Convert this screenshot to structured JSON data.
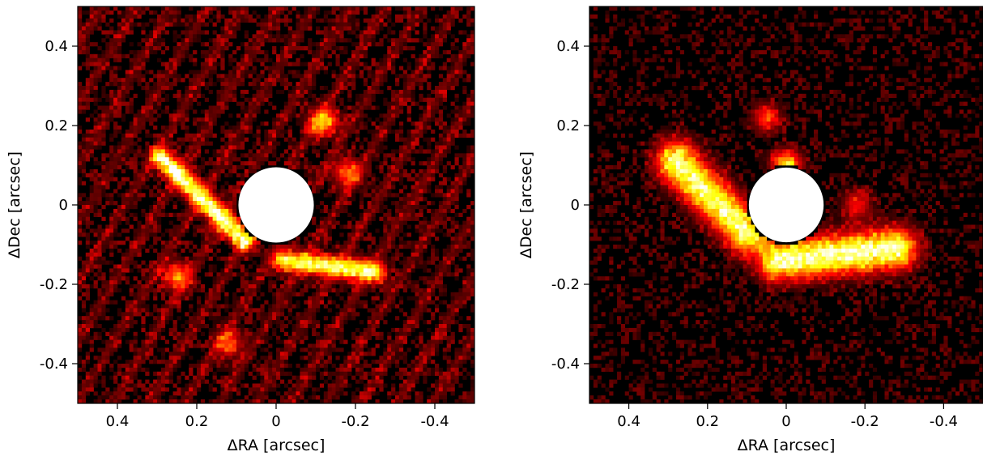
{
  "chart_data": [
    {
      "type": "heatmap",
      "colormap": "hot",
      "masked_center_color": "#ffffff",
      "xlabel": "ΔRA [arcsec]",
      "ylabel": "ΔDec [arcsec]",
      "xlim": [
        0.5,
        -0.5
      ],
      "ylim": [
        -0.5,
        0.5
      ],
      "xticks": [
        0.4,
        0.2,
        0,
        -0.2,
        -0.4
      ],
      "xtick_labels": [
        "0.4",
        "0.2",
        "0",
        "-0.2",
        "-0.4"
      ],
      "yticks": [
        0.4,
        0.2,
        0,
        -0.2,
        -0.4
      ],
      "ytick_labels": [
        "0.4",
        "0.2",
        "0",
        "-0.2",
        "-0.4"
      ],
      "mask_radius": 0.1,
      "features": [
        {
          "shape": "streak",
          "from": [
            0.29,
            0.12
          ],
          "to": [
            0.08,
            -0.09
          ],
          "intensity": 0.95
        },
        {
          "shape": "streak",
          "from": [
            -0.02,
            -0.14
          ],
          "to": [
            -0.25,
            -0.17
          ],
          "intensity": 0.9
        },
        {
          "shape": "blob",
          "center": [
            -0.12,
            0.21
          ],
          "intensity": 0.6
        },
        {
          "shape": "blob",
          "center": [
            0.25,
            -0.18
          ],
          "intensity": 0.5
        },
        {
          "shape": "blob",
          "center": [
            0.12,
            -0.35
          ],
          "intensity": 0.4
        },
        {
          "shape": "blob",
          "center": [
            -0.18,
            0.08
          ],
          "intensity": 0.45
        }
      ]
    },
    {
      "type": "heatmap",
      "colormap": "hot",
      "masked_center_color": "#ffffff",
      "xlabel": "ΔRA [arcsec]",
      "ylabel": "ΔDec [arcsec]",
      "xlim": [
        0.5,
        -0.5
      ],
      "ylim": [
        -0.5,
        0.5
      ],
      "xticks": [
        0.4,
        0.2,
        0,
        -0.2,
        -0.4
      ],
      "xtick_labels": [
        "0.4",
        "0.2",
        "0",
        "-0.2",
        "-0.4"
      ],
      "yticks": [
        0.4,
        0.2,
        0,
        -0.2,
        -0.4
      ],
      "ytick_labels": [
        "0.4",
        "0.2",
        "0",
        "-0.2",
        "-0.4"
      ],
      "mask_radius": 0.1,
      "features": [
        {
          "shape": "arc",
          "from": [
            0.28,
            0.11
          ],
          "to": [
            0.1,
            -0.07
          ],
          "intensity": 0.95
        },
        {
          "shape": "arc",
          "from": [
            0.02,
            -0.14
          ],
          "to": [
            -0.28,
            -0.11
          ],
          "intensity": 1.0
        },
        {
          "shape": "blob",
          "center": [
            0.0,
            0.1
          ],
          "intensity": 0.7
        },
        {
          "shape": "blob",
          "center": [
            0.05,
            0.22
          ],
          "intensity": 0.4
        },
        {
          "shape": "blob",
          "center": [
            -0.18,
            0.0
          ],
          "intensity": 0.35
        }
      ]
    }
  ]
}
